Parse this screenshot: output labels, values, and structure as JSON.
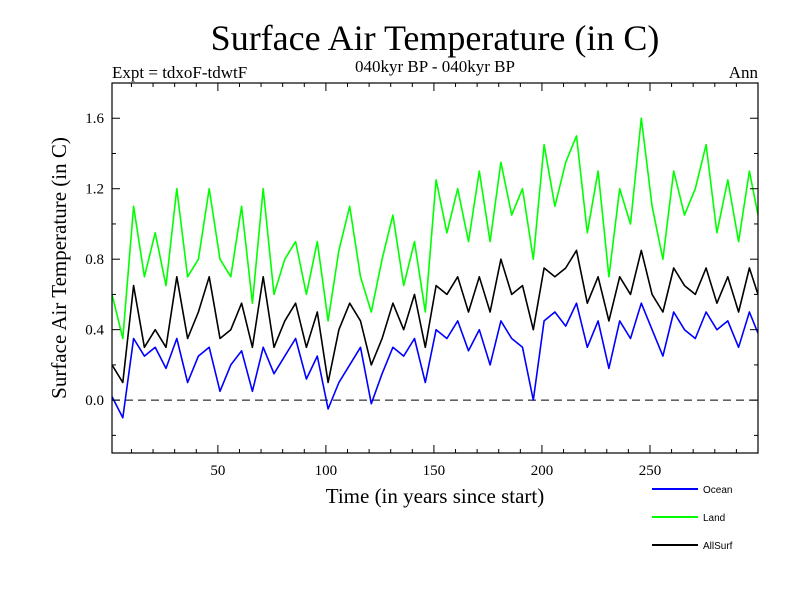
{
  "chart_data": {
    "type": "line",
    "title": "Surface Air Temperature (in C)",
    "subtitle": "040kyr BP - 040kyr BP",
    "expt_label": "Expt = tdxoF-tdwtF",
    "season_label": "Ann",
    "xlabel": "Time (in years since start)",
    "ylabel": "Surface Air Temperature (in C)",
    "xlim": [
      1,
      300
    ],
    "ylim": [
      -0.3,
      1.8
    ],
    "xticks": [
      50,
      100,
      150,
      200,
      250
    ],
    "yticks": [
      "0.0",
      "0.4",
      "0.8",
      "1.2",
      "1.6"
    ],
    "ytick_values": [
      0.0,
      0.4,
      0.8,
      1.2,
      1.6
    ],
    "zero_line": "dashed",
    "legend_position": "bottom-right",
    "x": [
      1,
      6,
      11,
      16,
      21,
      26,
      31,
      36,
      41,
      46,
      51,
      56,
      61,
      66,
      71,
      76,
      81,
      86,
      91,
      96,
      101,
      106,
      111,
      116,
      121,
      126,
      131,
      136,
      141,
      146,
      151,
      156,
      161,
      166,
      171,
      176,
      181,
      186,
      191,
      196,
      201,
      206,
      211,
      216,
      221,
      226,
      231,
      236,
      241,
      246,
      251,
      256,
      261,
      266,
      271,
      276,
      281,
      286,
      291,
      296,
      300
    ],
    "series": [
      {
        "name": "Ocean",
        "color": "#0000ff",
        "values": [
          0.02,
          -0.1,
          0.35,
          0.25,
          0.3,
          0.18,
          0.35,
          0.1,
          0.25,
          0.3,
          0.05,
          0.2,
          0.28,
          0.05,
          0.3,
          0.15,
          0.25,
          0.35,
          0.12,
          0.25,
          -0.05,
          0.1,
          0.2,
          0.3,
          -0.02,
          0.15,
          0.3,
          0.25,
          0.35,
          0.1,
          0.4,
          0.35,
          0.45,
          0.28,
          0.4,
          0.2,
          0.45,
          0.35,
          0.3,
          0.0,
          0.45,
          0.5,
          0.42,
          0.55,
          0.3,
          0.45,
          0.18,
          0.45,
          0.35,
          0.55,
          0.4,
          0.25,
          0.5,
          0.4,
          0.35,
          0.5,
          0.4,
          0.45,
          0.3,
          0.5,
          0.38
        ]
      },
      {
        "name": "Land",
        "color": "#00ff00",
        "values": [
          0.6,
          0.35,
          1.1,
          0.7,
          0.95,
          0.65,
          1.2,
          0.7,
          0.8,
          1.2,
          0.8,
          0.7,
          1.1,
          0.55,
          1.2,
          0.6,
          0.8,
          0.9,
          0.6,
          0.9,
          0.45,
          0.85,
          1.1,
          0.7,
          0.5,
          0.8,
          1.05,
          0.65,
          0.9,
          0.5,
          1.25,
          0.95,
          1.2,
          0.9,
          1.3,
          0.9,
          1.35,
          1.05,
          1.2,
          0.8,
          1.45,
          1.1,
          1.35,
          1.5,
          0.95,
          1.3,
          0.7,
          1.2,
          1.0,
          1.6,
          1.1,
          0.8,
          1.3,
          1.05,
          1.2,
          1.45,
          0.95,
          1.25,
          0.9,
          1.3,
          1.05
        ]
      },
      {
        "name": "AllSurf",
        "color": "#000000",
        "values": [
          0.2,
          0.1,
          0.65,
          0.3,
          0.4,
          0.3,
          0.7,
          0.35,
          0.5,
          0.7,
          0.35,
          0.4,
          0.55,
          0.3,
          0.7,
          0.3,
          0.45,
          0.55,
          0.3,
          0.5,
          0.1,
          0.4,
          0.55,
          0.45,
          0.2,
          0.35,
          0.55,
          0.4,
          0.6,
          0.3,
          0.65,
          0.6,
          0.7,
          0.5,
          0.7,
          0.5,
          0.8,
          0.6,
          0.65,
          0.4,
          0.75,
          0.7,
          0.75,
          0.85,
          0.55,
          0.7,
          0.45,
          0.7,
          0.6,
          0.85,
          0.6,
          0.5,
          0.75,
          0.65,
          0.6,
          0.75,
          0.55,
          0.7,
          0.5,
          0.75,
          0.6
        ]
      }
    ]
  }
}
